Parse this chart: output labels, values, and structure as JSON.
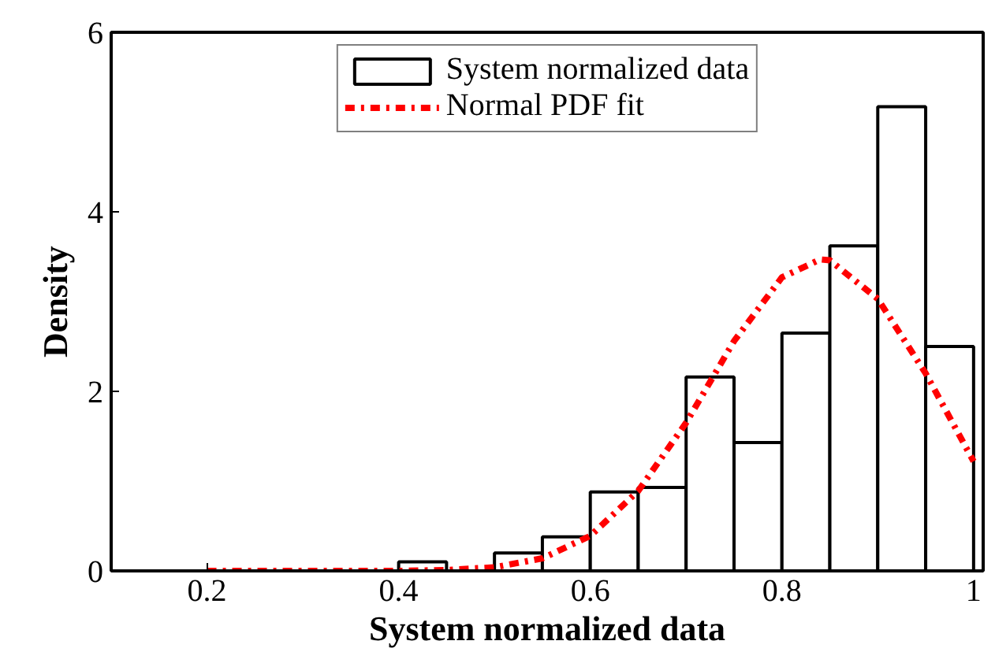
{
  "chart_data": {
    "type": "histogram",
    "xlabel": "System normalized data",
    "ylabel": "Density",
    "xlim": [
      0.1,
      1.01
    ],
    "ylim": [
      0,
      6
    ],
    "xticks": [
      0.2,
      0.4,
      0.6,
      0.8,
      1
    ],
    "yticks": [
      0,
      2,
      4,
      6
    ],
    "grid": false,
    "legend": "top",
    "series": [
      {
        "name": "System normalized data",
        "color": "#000000",
        "bins": [
          0.2,
          0.25,
          0.3,
          0.35,
          0.4,
          0.45,
          0.5,
          0.55,
          0.6,
          0.65,
          0.7,
          0.75,
          0.8,
          0.85,
          0.9,
          0.95,
          1.0
        ],
        "values": [
          null,
          0,
          0,
          0,
          0.1,
          0,
          0.2,
          0.38,
          0.88,
          0.93,
          2.16,
          1.43,
          2.65,
          3.62,
          5.17,
          2.5
        ]
      },
      {
        "name": "Normal PDF fit",
        "type": "line",
        "color": "#ff0000",
        "line_style": "dashdot",
        "x": [
          0.2,
          0.3,
          0.4,
          0.45,
          0.5,
          0.55,
          0.6,
          0.65,
          0.7,
          0.75,
          0.8,
          0.84,
          0.85,
          0.9,
          0.95,
          1.0
        ],
        "values": [
          0,
          0,
          0,
          0.01,
          0.04,
          0.14,
          0.39,
          0.89,
          1.65,
          2.56,
          3.27,
          3.47,
          3.46,
          3.03,
          2.2,
          1.22
        ]
      }
    ]
  }
}
